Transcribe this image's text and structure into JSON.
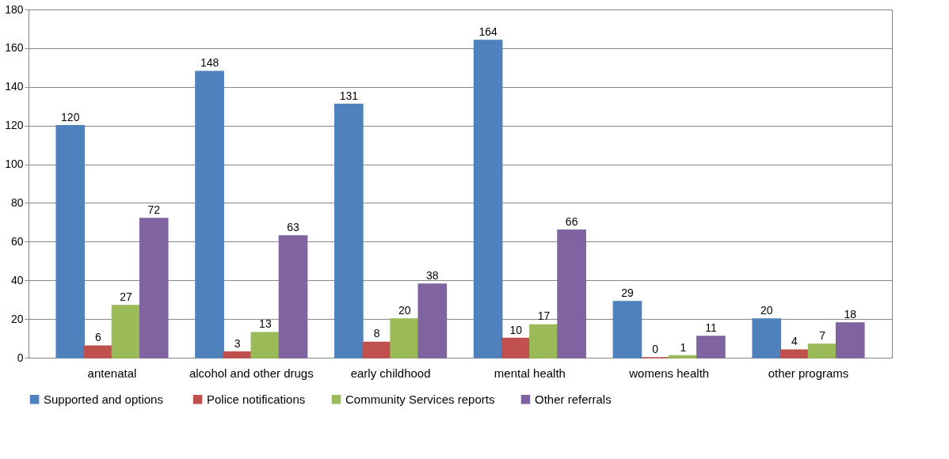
{
  "chart_data": {
    "type": "bar",
    "categories": [
      "antenatal",
      "alcohol and other drugs",
      "early childhood",
      "mental health",
      "womens health",
      "other programs"
    ],
    "series": [
      {
        "name": "Supported  and options",
        "color": "#4f81bd",
        "values": [
          120,
          148,
          131,
          164,
          29,
          20
        ]
      },
      {
        "name": "Police notifications",
        "color": "#c0504d",
        "values": [
          6,
          3,
          8,
          10,
          0,
          4
        ]
      },
      {
        "name": "Community Services reports",
        "color": "#9bbb59",
        "values": [
          27,
          13,
          20,
          17,
          1,
          7
        ]
      },
      {
        "name": "Other referrals",
        "color": "#8064a2",
        "values": [
          72,
          63,
          38,
          66,
          11,
          18
        ]
      }
    ],
    "ylim": [
      0,
      180
    ],
    "yticks": [
      0,
      20,
      40,
      60,
      80,
      100,
      120,
      140,
      160,
      180
    ],
    "grid": "y",
    "legend": "bottom",
    "data_labels": true
  }
}
